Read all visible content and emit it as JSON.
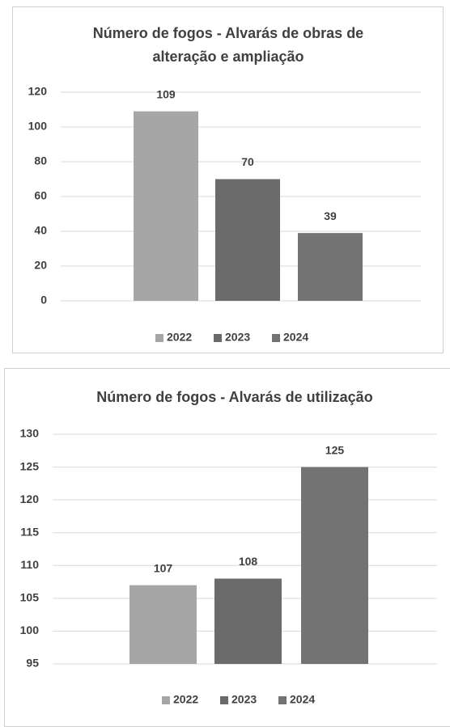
{
  "chart_data": [
    {
      "type": "bar",
      "title": [
        "Número de fogos - Alvarás de obras de",
        "alteração e ampliação"
      ],
      "series": [
        {
          "name": "2022",
          "color": "#a6a6a6",
          "values": [
            109
          ]
        },
        {
          "name": "2023",
          "color": "#6b6b6b",
          "values": [
            70
          ]
        },
        {
          "name": "2024",
          "color": "#737373",
          "values": [
            39
          ]
        }
      ],
      "ylim": [
        0,
        120
      ],
      "yticks": [
        0,
        20,
        40,
        60,
        80,
        100,
        120
      ],
      "grid": true,
      "legend": "bottom"
    },
    {
      "type": "bar",
      "title": [
        "Número de fogos - Alvarás de utilização"
      ],
      "series": [
        {
          "name": "2022",
          "color": "#a6a6a6",
          "values": [
            107
          ]
        },
        {
          "name": "2023",
          "color": "#6b6b6b",
          "values": [
            108
          ]
        },
        {
          "name": "2024",
          "color": "#737373",
          "values": [
            125
          ]
        }
      ],
      "ylim": [
        95,
        130
      ],
      "yticks": [
        95,
        100,
        105,
        110,
        115,
        120,
        125,
        130
      ],
      "grid": true,
      "legend": "bottom"
    }
  ]
}
